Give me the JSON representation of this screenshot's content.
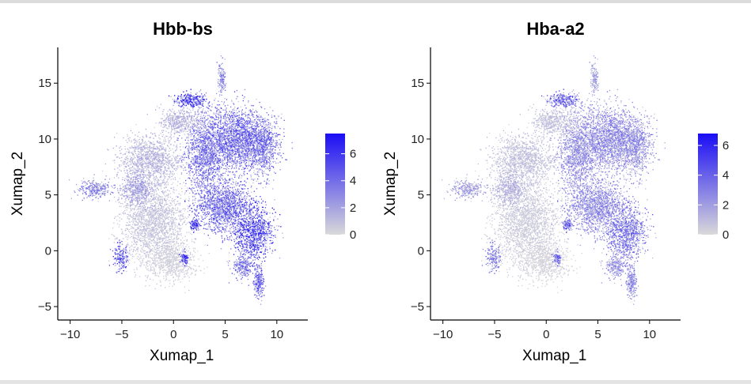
{
  "chart_data": [
    {
      "type": "scatter",
      "title": "Hbb-bs",
      "xlabel": "Xumap_1",
      "ylabel": "Xumap_2",
      "xlim": [
        -11.2,
        13.0
      ],
      "ylim": [
        -6.2,
        18.2
      ],
      "xticks": [
        -10,
        -5,
        0,
        5,
        10
      ],
      "yticks": [
        -5,
        0,
        5,
        10,
        15
      ],
      "xtick_labels": [
        "−10",
        "−5",
        "0",
        "5",
        "10"
      ],
      "ytick_labels": [
        "−5",
        "0",
        "5",
        "10",
        "15"
      ],
      "colorbar": {
        "min": 0,
        "max": 7.5,
        "ticks": [
          0,
          2,
          4,
          6
        ],
        "tick_labels": [
          "0",
          "2",
          "4",
          "6"
        ],
        "low_color": "#d9d9d9",
        "high_color": "#1a0df5",
        "placement": "right"
      },
      "expression_scale": 1.0,
      "grid": false
    },
    {
      "type": "scatter",
      "title": "Hba-a2",
      "xlabel": "Xumap_1",
      "ylabel": "Xumap_2",
      "xlim": [
        -11.2,
        13.0
      ],
      "ylim": [
        -6.2,
        18.2
      ],
      "xticks": [
        -10,
        -5,
        0,
        5,
        10
      ],
      "yticks": [
        -5,
        0,
        5,
        10,
        15
      ],
      "xtick_labels": [
        "−10",
        "−5",
        "0",
        "5",
        "10"
      ],
      "ytick_labels": [
        "−5",
        "0",
        "5",
        "10",
        "15"
      ],
      "colorbar": {
        "min": 0,
        "max": 6.8,
        "ticks": [
          0,
          2,
          4,
          6
        ],
        "tick_labels": [
          "0",
          "2",
          "4",
          "6"
        ],
        "low_color": "#d9d9d9",
        "high_color": "#1a0df5",
        "placement": "right"
      },
      "expression_scale": 0.7,
      "grid": false
    }
  ],
  "clusters": [
    {
      "cx": 3.0,
      "cy": 8.8,
      "rx": 1.9,
      "ry": 3.8,
      "n": 1400,
      "expr": 0.55
    },
    {
      "cx": 6.0,
      "cy": 10.0,
      "rx": 2.6,
      "ry": 2.8,
      "n": 1700,
      "expr": 0.6
    },
    {
      "cx": 8.5,
      "cy": 9.5,
      "rx": 1.6,
      "ry": 2.6,
      "n": 900,
      "expr": 0.55
    },
    {
      "cx": 5.0,
      "cy": 4.0,
      "rx": 2.9,
      "ry": 2.3,
      "n": 1500,
      "expr": 0.6
    },
    {
      "cx": 7.8,
      "cy": 1.6,
      "rx": 1.9,
      "ry": 2.2,
      "n": 900,
      "expr": 0.75
    },
    {
      "cx": 8.2,
      "cy": -2.8,
      "rx": 0.5,
      "ry": 1.4,
      "n": 220,
      "expr": 0.6
    },
    {
      "cx": 4.6,
      "cy": 15.4,
      "rx": 0.4,
      "ry": 1.3,
      "n": 140,
      "expr": 0.45
    },
    {
      "cx": 1.6,
      "cy": 13.5,
      "rx": 1.5,
      "ry": 0.6,
      "n": 260,
      "expr": 0.9
    },
    {
      "cx": -2.0,
      "cy": 2.5,
      "rx": 3.0,
      "ry": 3.8,
      "n": 2000,
      "expr": 0.12
    },
    {
      "cx": -2.3,
      "cy": 8.2,
      "rx": 2.9,
      "ry": 2.2,
      "n": 1200,
      "expr": 0.2
    },
    {
      "cx": 0.6,
      "cy": 11.6,
      "rx": 2.2,
      "ry": 1.3,
      "n": 500,
      "expr": 0.2
    },
    {
      "cx": -0.2,
      "cy": -1.0,
      "rx": 2.3,
      "ry": 1.8,
      "n": 700,
      "expr": 0.05
    },
    {
      "cx": -7.6,
      "cy": 5.6,
      "rx": 1.7,
      "ry": 0.8,
      "n": 300,
      "expr": 0.45
    },
    {
      "cx": -5.2,
      "cy": -0.6,
      "rx": 0.7,
      "ry": 1.2,
      "n": 180,
      "expr": 0.7
    },
    {
      "cx": 2.0,
      "cy": 2.4,
      "rx": 0.4,
      "ry": 0.5,
      "n": 120,
      "expr": 0.95
    },
    {
      "cx": 1.0,
      "cy": -0.6,
      "rx": 0.4,
      "ry": 0.6,
      "n": 90,
      "expr": 0.8
    },
    {
      "cx": 6.7,
      "cy": -1.3,
      "rx": 1.1,
      "ry": 1.1,
      "n": 260,
      "expr": 0.55
    },
    {
      "cx": -3.6,
      "cy": 5.5,
      "rx": 1.6,
      "ry": 1.5,
      "n": 500,
      "expr": 0.3
    }
  ]
}
